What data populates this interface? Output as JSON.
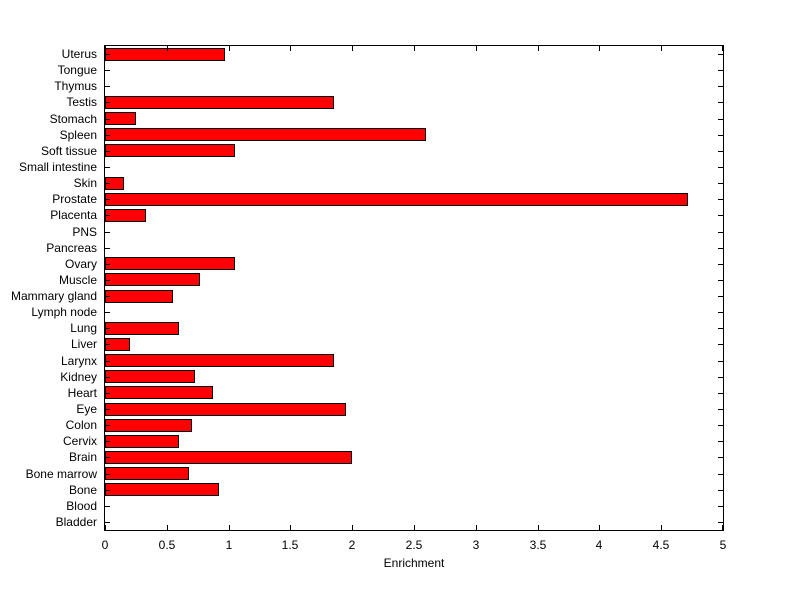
{
  "chart_data": {
    "type": "bar",
    "orientation": "horizontal",
    "title": "",
    "xlabel": "Enrichment",
    "ylabel": "",
    "xlim": [
      0,
      5
    ],
    "xticks": [
      0,
      0.5,
      1,
      1.5,
      2,
      2.5,
      3,
      3.5,
      4,
      4.5,
      5
    ],
    "xtick_labels": [
      "0",
      "0.5",
      "1",
      "1.5",
      "2",
      "2.5",
      "3",
      "3.5",
      "4",
      "4.5",
      "5"
    ],
    "categories": [
      "Uterus",
      "Tongue",
      "Thymus",
      "Testis",
      "Stomach",
      "Spleen",
      "Soft tissue",
      "Small intestine",
      "Skin",
      "Prostate",
      "Placenta",
      "PNS",
      "Pancreas",
      "Ovary",
      "Muscle",
      "Mammary gland",
      "Lymph node",
      "Lung",
      "Liver",
      "Larynx",
      "Kidney",
      "Heart",
      "Eye",
      "Colon",
      "Cervix",
      "Brain",
      "Bone marrow",
      "Bone",
      "Blood",
      "Bladder"
    ],
    "values": [
      0.97,
      0,
      0,
      1.85,
      0.25,
      2.6,
      1.05,
      0,
      0.15,
      4.72,
      0.33,
      0,
      0,
      1.05,
      0.77,
      0.55,
      0,
      0.6,
      0.2,
      1.85,
      0.73,
      0.87,
      1.95,
      0.7,
      0.6,
      2.0,
      0.68,
      0.92,
      0,
      0
    ],
    "bar_fill": "#ff0000",
    "bar_edge": "#000000",
    "axis_color": "#000000",
    "background": "#ffffff",
    "grid": false,
    "legend": "none"
  }
}
